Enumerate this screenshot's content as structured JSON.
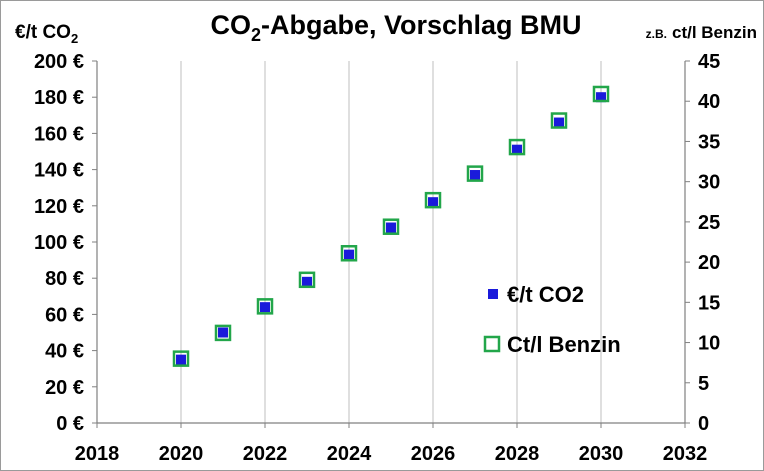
{
  "chart_data": {
    "type": "scatter",
    "title": {
      "main": "CO",
      "sub": "2",
      "rest": "-Abgabe, Vorschlag BMU"
    },
    "ylabel_left": {
      "main": "€/t CO",
      "sub": "2"
    },
    "ylabel_right": {
      "prefix": "z.B.",
      "rest": "ct/l Benzin"
    },
    "xlim": [
      2018,
      2032
    ],
    "xticks": [
      "2018",
      "2020",
      "2022",
      "2024",
      "2026",
      "2028",
      "2030",
      "2032"
    ],
    "ylim_left": [
      0,
      200
    ],
    "yticks_left": [
      "0 €",
      "20 €",
      "40 €",
      "60 €",
      "80 €",
      "100 €",
      "120 €",
      "140 €",
      "160 €",
      "180 €",
      "200 €"
    ],
    "ylim_right": [
      0,
      45
    ],
    "yticks_right": [
      "0",
      "5",
      "10",
      "15",
      "20",
      "25",
      "30",
      "35",
      "40",
      "45"
    ],
    "grid": "vertical",
    "legend_position": "right",
    "series": [
      {
        "name": "€/t CO2",
        "axis": "left",
        "marker": "filled-square",
        "color": "#1a1adb",
        "x": [
          2020,
          2021,
          2022,
          2023,
          2024,
          2025,
          2026,
          2027,
          2028,
          2029,
          2030
        ],
        "y": [
          35,
          50,
          64,
          78,
          93,
          108,
          122,
          137,
          151,
          166,
          180
        ]
      },
      {
        "name": "Ct/l Benzin",
        "axis": "right",
        "marker": "hollow-square",
        "color": "#22a64a",
        "x": [
          2020,
          2021,
          2022,
          2023,
          2024,
          2025,
          2026,
          2027,
          2028,
          2029,
          2030
        ],
        "y": [
          8.0,
          11.2,
          14.5,
          17.8,
          21.1,
          24.4,
          27.7,
          31.0,
          34.3,
          37.6,
          40.9
        ]
      }
    ]
  }
}
